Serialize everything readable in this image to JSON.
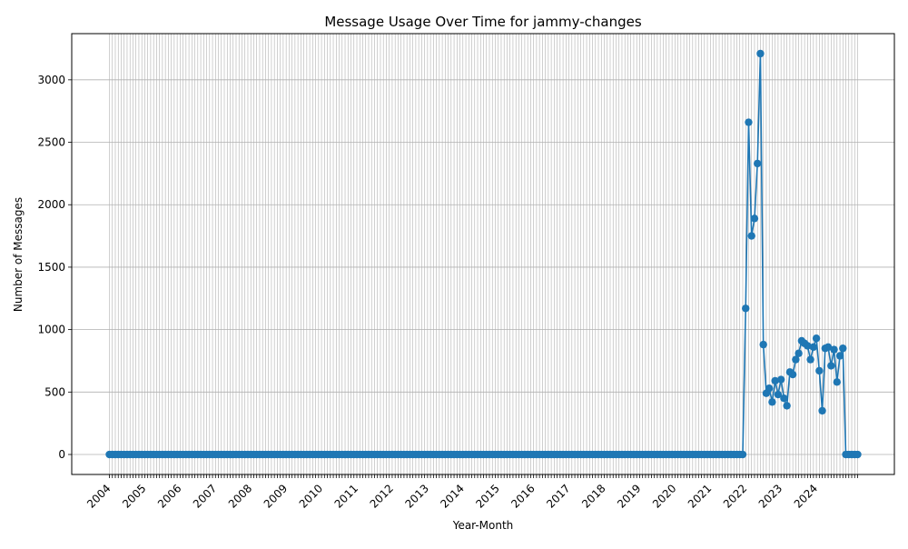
{
  "chart_data": {
    "type": "line",
    "title": "Message Usage Over Time for jammy-changes",
    "xlabel": "Year-Month",
    "ylabel": "Number of Messages",
    "year_labels": [
      "2004",
      "2005",
      "2006",
      "2007",
      "2008",
      "2009",
      "2010",
      "2011",
      "2012",
      "2013",
      "2014",
      "2015",
      "2016",
      "2017",
      "2018",
      "2019",
      "2020",
      "2021",
      "2022",
      "2023",
      "2024"
    ],
    "ylim": [
      -160,
      3370
    ],
    "yticks": [
      0,
      500,
      1000,
      1500,
      2000,
      2500,
      3000
    ],
    "grid": true,
    "series": [
      {
        "color": "#1f77b4",
        "x_start": "2004-01",
        "zero_months": 216,
        "values_from_2022": [
          1170,
          2660,
          1750,
          1890,
          2330,
          3210,
          880,
          490,
          530,
          420,
          590,
          480,
          600,
          450,
          390,
          660,
          640,
          760,
          810,
          910,
          890,
          870,
          760,
          860,
          930,
          670,
          350,
          850,
          860,
          710,
          840,
          580,
          790,
          850,
          0,
          0,
          0,
          0,
          0
        ]
      }
    ]
  }
}
